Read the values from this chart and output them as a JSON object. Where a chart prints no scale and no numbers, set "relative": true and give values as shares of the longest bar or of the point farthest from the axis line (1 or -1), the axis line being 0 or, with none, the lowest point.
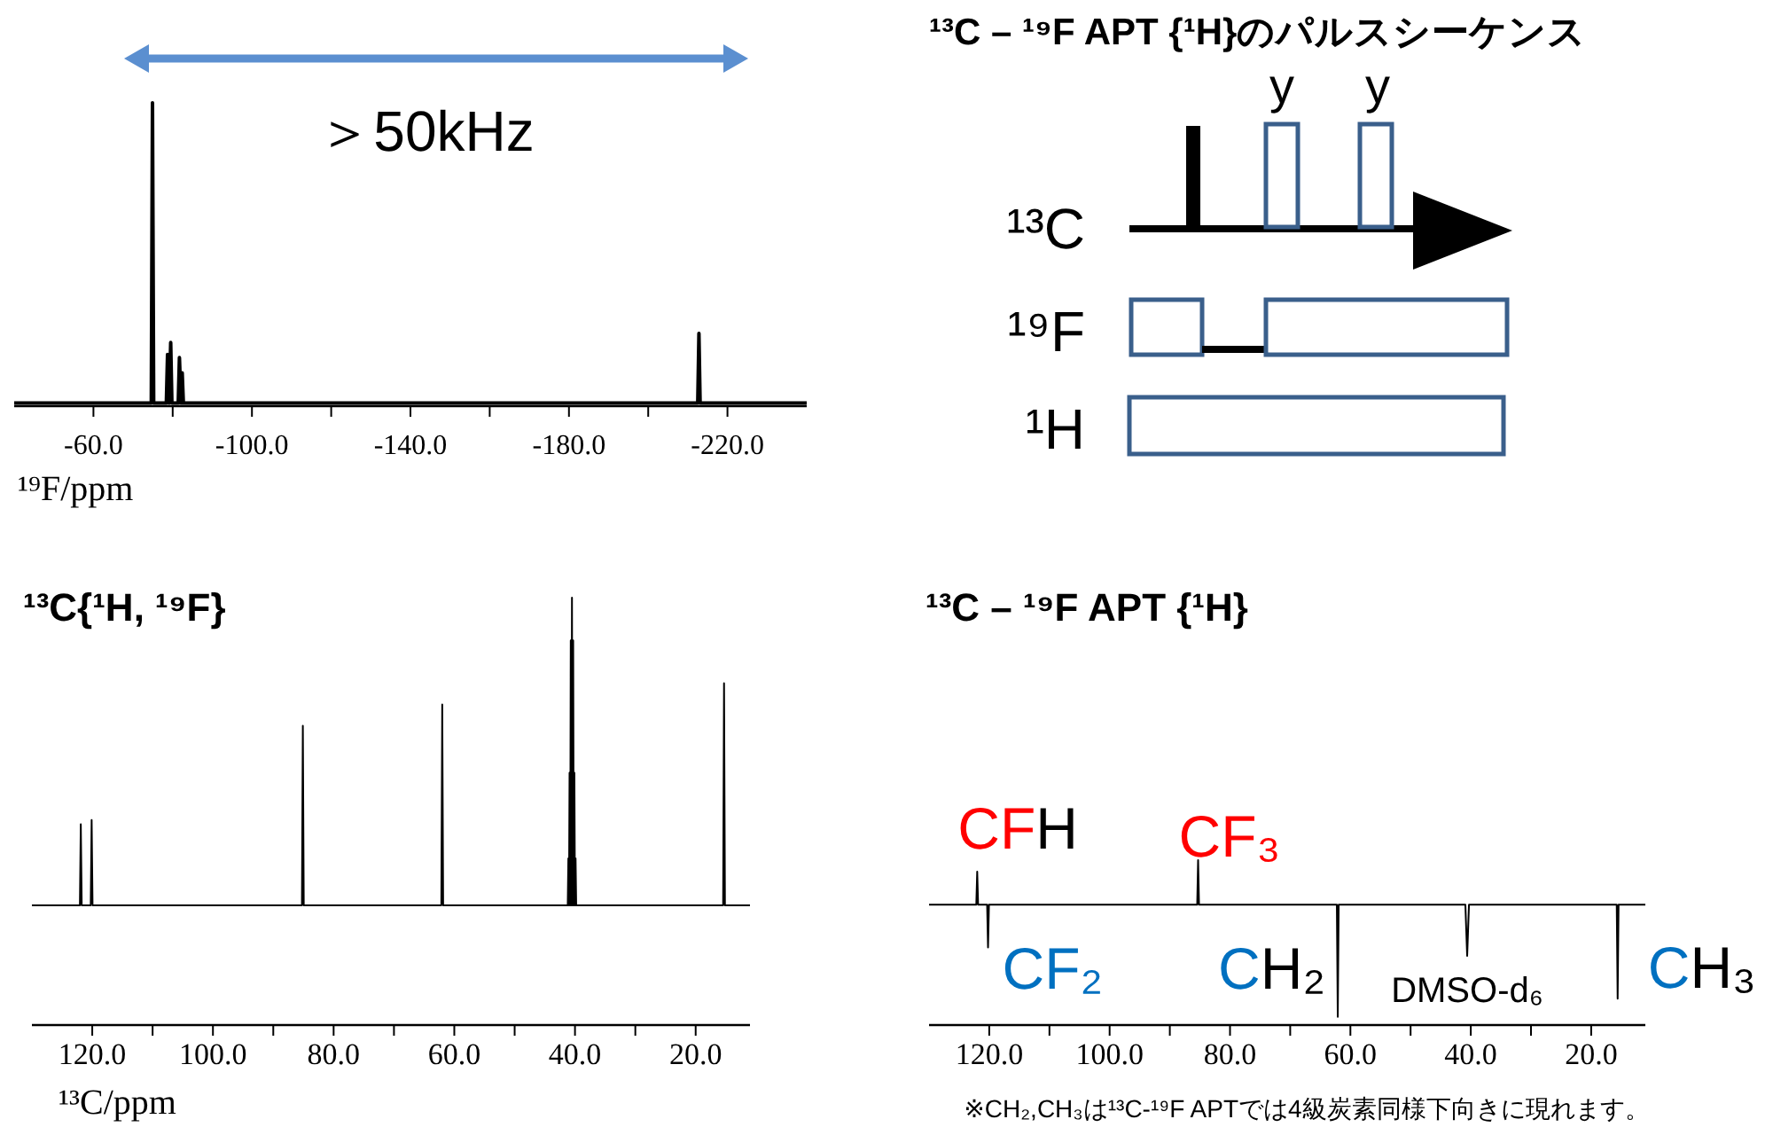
{
  "chart_data": [
    {
      "type": "line",
      "xlabel": "¹⁹F/ppm",
      "relative": true,
      "xlim": [
        -40,
        -240
      ],
      "xticks": [
        {
          "value": -60,
          "label": "-60.0"
        },
        {
          "value": -80,
          "label": null
        },
        {
          "value": -100,
          "label": "-100.0"
        },
        {
          "value": -120,
          "label": null
        },
        {
          "value": -140,
          "label": "-140.0"
        },
        {
          "value": -160,
          "label": null
        },
        {
          "value": -180,
          "label": "-180.0"
        },
        {
          "value": -200,
          "label": null
        },
        {
          "value": -220,
          "label": "-220.0"
        }
      ],
      "series": [
        {
          "color": "#000000",
          "x": [
            -40,
            -74.6,
            -74.9,
            -75.2,
            -78.4,
            -78.7,
            -79.1,
            -79.5,
            -79.8,
            -81.4,
            -81.7,
            -82.1,
            -82.4,
            -82.7,
            -212.5,
            -212.8,
            -213.1,
            -240
          ],
          "values": [
            0.01,
            0.01,
            1,
            0.01,
            0.01,
            0.17,
            0.01,
            0.21,
            0.01,
            0.01,
            0.16,
            0.01,
            0.11,
            0.01,
            0.01,
            0.24,
            0.01,
            0.01
          ]
        }
      ],
      "annotations": [
        "＞50kHz"
      ]
    },
    {
      "type": "other",
      "title": "¹³C – ¹⁹F APT {¹H}のパルスシーケンス",
      "annotations": [
        "y",
        "y",
        "¹³C",
        "¹⁹F",
        "¹H"
      ]
    },
    {
      "type": "line",
      "title": "¹³C{¹H, ¹⁹F}",
      "xlabel": "¹³C/ppm",
      "relative": true,
      "xlim": [
        130,
        11
      ],
      "xticks": [
        {
          "value": 120,
          "label": "120.0"
        },
        {
          "value": 110,
          "label": null
        },
        {
          "value": 100,
          "label": "100.0"
        },
        {
          "value": 90,
          "label": null
        },
        {
          "value": 80,
          "label": "80.0"
        },
        {
          "value": 70,
          "label": null
        },
        {
          "value": 60,
          "label": "60.0"
        },
        {
          "value": 50,
          "label": null
        },
        {
          "value": 40,
          "label": "40.0"
        },
        {
          "value": 30,
          "label": null
        },
        {
          "value": 20,
          "label": "20.0"
        }
      ],
      "series": [
        {
          "color": "#000000",
          "x": [
            130,
            122.05,
            121.9,
            121.75,
            120.25,
            120.1,
            119.95,
            85.25,
            85.1,
            84.95,
            62.15,
            62.0,
            61.85,
            41.2,
            41.1,
            41.0,
            40.9,
            40.8,
            40.7,
            40.6,
            40.5,
            40.4,
            40.3,
            40.2,
            40.1,
            40.0,
            39.9,
            39.8,
            15.45,
            15.3,
            15.15,
            11
          ],
          "values": [
            0.28,
            0.28,
            0.47,
            0.28,
            0.28,
            0.48,
            0.28,
            0.28,
            0.7,
            0.28,
            0.28,
            0.75,
            0.28,
            0.28,
            0.39,
            0.28,
            0.59,
            0.28,
            0.9,
            0.28,
            1,
            0.28,
            0.9,
            0.28,
            0.59,
            0.28,
            0.39,
            0.28,
            0.28,
            0.8,
            0.28,
            0.28
          ]
        }
      ]
    },
    {
      "type": "line",
      "title": "¹³C – ¹⁹F APT {¹H}",
      "relative": true,
      "xlim": [
        130,
        11
      ],
      "xticks": [
        {
          "value": 120,
          "label": "120.0"
        },
        {
          "value": 110,
          "label": null
        },
        {
          "value": 100,
          "label": "100.0"
        },
        {
          "value": 90,
          "label": null
        },
        {
          "value": 80,
          "label": "80.0"
        },
        {
          "value": 70,
          "label": null
        },
        {
          "value": 60,
          "label": "60.0"
        },
        {
          "value": 50,
          "label": null
        },
        {
          "value": 40,
          "label": "40.0"
        },
        {
          "value": 30,
          "label": null
        },
        {
          "value": 20,
          "label": "20.0"
        }
      ],
      "series": [
        {
          "color": "#000000",
          "x": [
            130,
            122.15,
            122.0,
            121.85,
            120.35,
            120.2,
            120.05,
            85.45,
            85.3,
            85.15,
            62.25,
            62.1,
            61.95,
            40.9,
            40.6,
            40.3,
            15.75,
            15.6,
            15.45,
            11
          ],
          "values": [
            0.73,
            0.73,
            0.93,
            0.73,
            0.73,
            0.47,
            0.73,
            0.73,
            1,
            0.73,
            0.73,
            0.05,
            0.73,
            0.73,
            0.42,
            0.73,
            0.73,
            0.16,
            0.73,
            0.73
          ]
        }
      ],
      "annotations": [
        {
          "text": "CFH",
          "x": 122.0,
          "y": 0.93
        },
        {
          "text": "CF₂",
          "x": 120.2,
          "y": 0.47
        },
        {
          "text": "CF₃",
          "x": 85.3,
          "y": 1
        },
        {
          "text": "CH₂",
          "x": 62.1,
          "y": 0.05
        },
        {
          "text": "DMSO-d₆",
          "x": 40.6,
          "y": 0.42
        },
        {
          "text": "CH₃",
          "x": 15.6,
          "y": 0.16
        },
        "※CH₂,CH₃は¹³C-¹⁹F APTでは4級炭素同様下向きに現れます。"
      ]
    }
  ]
}
